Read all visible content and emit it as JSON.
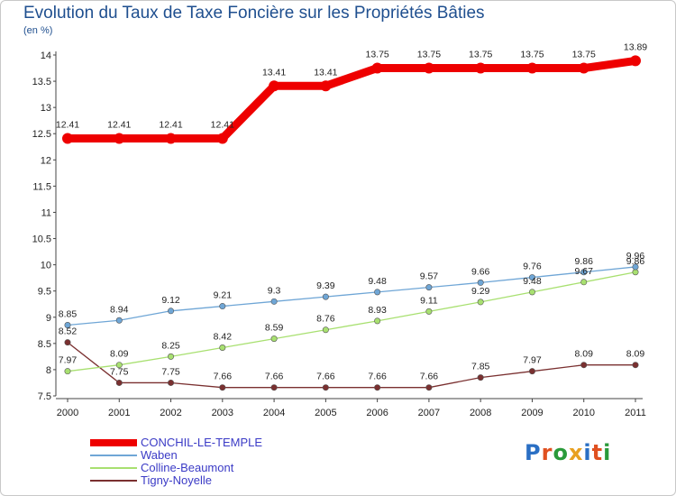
{
  "title": "Evolution du Taux de Taxe Foncière sur les Propriétés Bâties",
  "subtitle": "(en %)",
  "logo": "Proxiti",
  "chart_data": {
    "type": "line",
    "title": "Evolution du Taux de Taxe Foncière sur les Propriétés Bâties",
    "ylabel": "(en %)",
    "xlabel": "",
    "x": [
      "2000",
      "2001",
      "2002",
      "2003",
      "2004",
      "2005",
      "2006",
      "2007",
      "2008",
      "2009",
      "2010",
      "2011"
    ],
    "ylim": [
      7.5,
      14
    ],
    "yticks": [
      "7.5",
      "8",
      "8.5",
      "9",
      "9.5",
      "10",
      "10.5",
      "11",
      "11.5",
      "12",
      "12.5",
      "13",
      "13.5",
      "14"
    ],
    "grid": false,
    "legend_position": "bottom-left",
    "series": [
      {
        "name": "CONCHIL-LE-TEMPLE",
        "color": "#ee0000",
        "values": [
          12.41,
          12.41,
          12.41,
          12.41,
          13.41,
          13.41,
          13.75,
          13.75,
          13.75,
          13.75,
          13.75,
          13.89
        ],
        "labels": [
          "12.41",
          "12.41",
          "12.41",
          "12.41",
          "13.41",
          "13.41",
          "13.75",
          "13.75",
          "13.75",
          "13.75",
          "13.75",
          "13.89"
        ]
      },
      {
        "name": "Waben",
        "color": "#6fa6d6",
        "values": [
          8.85,
          8.94,
          9.12,
          9.21,
          9.3,
          9.39,
          9.48,
          9.57,
          9.66,
          9.76,
          9.86,
          9.96
        ],
        "labels": [
          "8.85",
          "8.94",
          "9.12",
          "9.21",
          "9.3",
          "9.39",
          "9.48",
          "9.57",
          "9.66",
          "9.76",
          "9.86",
          "9.96"
        ]
      },
      {
        "name": "Colline-Beaumont",
        "color": "#a8e070",
        "values": [
          7.97,
          8.09,
          8.25,
          8.42,
          8.59,
          8.76,
          8.93,
          9.11,
          9.29,
          9.48,
          9.67,
          9.86
        ],
        "labels": [
          "7.97",
          "8.09",
          "8.25",
          "8.42",
          "8.59",
          "8.76",
          "8.93",
          "9.11",
          "9.29",
          "9.48",
          "9.67",
          "9.86"
        ]
      },
      {
        "name": "Tigny-Noyelle",
        "color": "#7a3030",
        "values": [
          8.52,
          7.75,
          7.75,
          7.66,
          7.66,
          7.66,
          7.66,
          7.66,
          7.85,
          7.97,
          8.09,
          8.09
        ],
        "labels": [
          "8.52",
          "7.75",
          "7.75",
          "7.66",
          "7.66",
          "7.66",
          "7.66",
          "7.66",
          "7.85",
          "7.97",
          "8.09",
          "8.09"
        ]
      }
    ]
  }
}
